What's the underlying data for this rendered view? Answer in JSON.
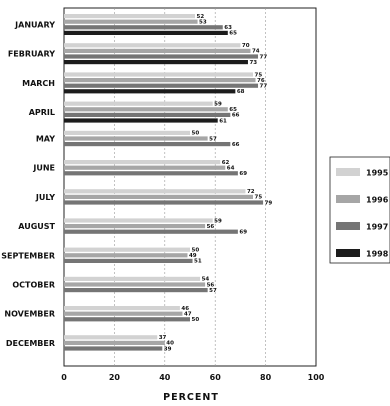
{
  "chart_data": {
    "type": "bar",
    "orientation": "horizontal",
    "categories": [
      "JANUARY",
      "FEBRUARY",
      "MARCH",
      "APRIL",
      "MAY",
      "JUNE",
      "JULY",
      "AUGUST",
      "SEPTEMBER",
      "OCTOBER",
      "NOVEMBER",
      "DECEMBER"
    ],
    "series": [
      {
        "name": "1995",
        "color": "#d2d2d2",
        "values": [
          52,
          70,
          75,
          59,
          50,
          62,
          72,
          59,
          50,
          54,
          46,
          37
        ]
      },
      {
        "name": "1996",
        "color": "#a6a6a6",
        "values": [
          53,
          74,
          76,
          65,
          57,
          64,
          75,
          56,
          49,
          56,
          47,
          40
        ]
      },
      {
        "name": "1997",
        "color": "#757575",
        "values": [
          63,
          77,
          77,
          66,
          66,
          69,
          79,
          69,
          51,
          57,
          50,
          39
        ]
      },
      {
        "name": "1998",
        "color": "#1c1c1c",
        "values": [
          65,
          73,
          68,
          61,
          null,
          null,
          null,
          null,
          null,
          null,
          null,
          null
        ]
      }
    ],
    "xlabel": "PERCENT",
    "ylabel": "",
    "xlim": [
      0,
      100
    ],
    "xticks": [
      0,
      20,
      40,
      60,
      80,
      100
    ],
    "grid": "vertical dashed",
    "legend_position": "right"
  }
}
